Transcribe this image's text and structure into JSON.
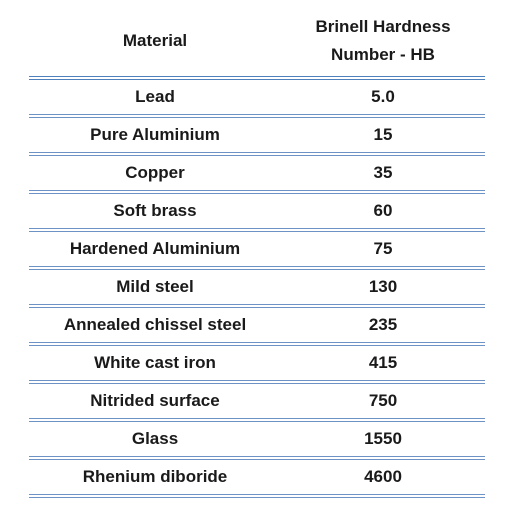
{
  "table": {
    "headers": {
      "material": "Material",
      "hardness_line1": "Brinell Hardness",
      "hardness_line2": "Number - HB"
    },
    "rows": [
      {
        "material": "Lead",
        "hardness": "5.0"
      },
      {
        "material": "Pure Aluminium",
        "hardness": "15"
      },
      {
        "material": "Copper",
        "hardness": "35"
      },
      {
        "material": "Soft brass",
        "hardness": "60"
      },
      {
        "material": "Hardened Aluminium",
        "hardness": "75"
      },
      {
        "material": "Mild steel",
        "hardness": "130"
      },
      {
        "material": "Annealed chissel steel",
        "hardness": "235"
      },
      {
        "material": "White cast iron",
        "hardness": "415"
      },
      {
        "material": "Nitrided surface",
        "hardness": "750"
      },
      {
        "material": "Glass",
        "hardness": "1550"
      },
      {
        "material": "Rhenium diboride",
        "hardness": "4600"
      }
    ],
    "border_color": "#4f81bd"
  }
}
